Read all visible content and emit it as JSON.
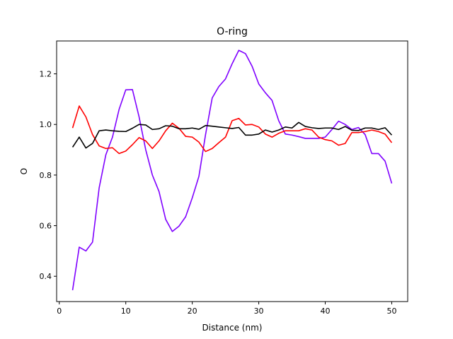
{
  "chart_data": {
    "type": "line",
    "title": "O-ring",
    "xlabel": "Distance (nm)",
    "ylabel": "O",
    "xlim": [
      -0.4,
      52.4
    ],
    "ylim": [
      0.3,
      1.33
    ],
    "xticks": [
      0,
      10,
      20,
      30,
      40,
      50
    ],
    "yticks": [
      0.4,
      0.6,
      0.8,
      1.0,
      1.2
    ],
    "grid": false,
    "legend": "none",
    "x": [
      2,
      3,
      4,
      5,
      6,
      7,
      8,
      9,
      10,
      11,
      12,
      13,
      14,
      15,
      16,
      17,
      18,
      19,
      20,
      21,
      22,
      23,
      24,
      25,
      26,
      27,
      28,
      29,
      30,
      31,
      32,
      33,
      34,
      35,
      36,
      37,
      38,
      39,
      40,
      41,
      42,
      43,
      44,
      45,
      46,
      47,
      48,
      49,
      50
    ],
    "series": [
      {
        "color": "#7f00ff",
        "values": [
          0.345,
          0.515,
          0.5,
          0.535,
          0.75,
          0.88,
          0.95,
          1.06,
          1.137,
          1.138,
          1.03,
          0.9,
          0.8,
          0.735,
          0.625,
          0.577,
          0.598,
          0.635,
          0.71,
          0.795,
          0.96,
          1.105,
          1.15,
          1.18,
          1.24,
          1.293,
          1.28,
          1.23,
          1.16,
          1.125,
          1.095,
          1.015,
          0.962,
          0.958,
          0.952,
          0.945,
          0.945,
          0.945,
          0.95,
          0.98,
          1.013,
          1.0,
          0.98,
          0.988,
          0.96,
          0.885,
          0.885,
          0.855,
          0.767
        ]
      },
      {
        "color": "#ff0000",
        "values": [
          0.986,
          1.073,
          1.03,
          0.96,
          0.915,
          0.905,
          0.908,
          0.885,
          0.895,
          0.92,
          0.948,
          0.935,
          0.905,
          0.935,
          0.975,
          1.005,
          0.985,
          0.953,
          0.95,
          0.93,
          0.893,
          0.905,
          0.928,
          0.95,
          1.015,
          1.024,
          0.998,
          1.0,
          0.99,
          0.962,
          0.95,
          0.965,
          0.975,
          0.975,
          0.975,
          0.983,
          0.978,
          0.95,
          0.94,
          0.935,
          0.918,
          0.925,
          0.968,
          0.968,
          0.972,
          0.978,
          0.972,
          0.962,
          0.928
        ]
      },
      {
        "color": "#000000",
        "values": [
          0.91,
          0.95,
          0.907,
          0.925,
          0.975,
          0.978,
          0.975,
          0.973,
          0.972,
          0.985,
          1.0,
          0.998,
          0.98,
          0.983,
          0.995,
          0.993,
          0.983,
          0.983,
          0.986,
          0.981,
          0.996,
          0.993,
          0.99,
          0.987,
          0.984,
          0.988,
          0.958,
          0.958,
          0.962,
          0.978,
          0.97,
          0.978,
          0.99,
          0.986,
          1.008,
          0.992,
          0.987,
          0.984,
          0.986,
          0.986,
          0.98,
          0.992,
          0.977,
          0.976,
          0.986,
          0.986,
          0.98,
          0.987,
          0.958
        ]
      }
    ]
  }
}
